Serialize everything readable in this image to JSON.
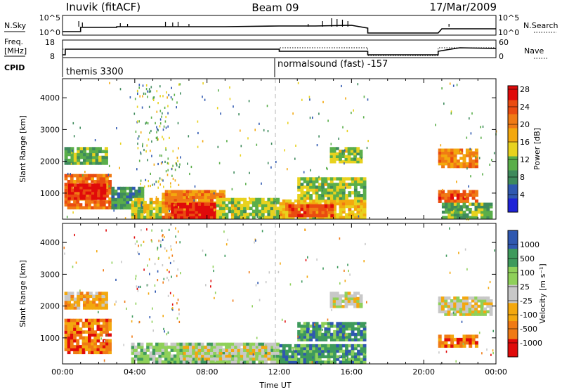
{
  "header": {
    "station": "Inuvik (fitACF)",
    "beam": "Beam 09",
    "date": "17/Mar/2009"
  },
  "summary": {
    "nsky": {
      "label": "N.Sky",
      "ticks": [
        "10^5",
        "10^0"
      ]
    },
    "nsearch": {
      "label": "N.Search",
      "ticks": [
        "10^5",
        "10^0"
      ]
    },
    "freq": {
      "label_top": "Freq.",
      "label_bottom": "[MHz]",
      "ticks": [
        "18",
        "8"
      ]
    },
    "nave": {
      "label": "Nave",
      "ticks": [
        "60",
        "0"
      ]
    },
    "cpid": {
      "label": "CPID",
      "modes": [
        "themis 3300",
        "normalsound (fast) -157"
      ]
    }
  },
  "colors": {
    "power": [
      "#1e22d6",
      "#2f58b0",
      "#3e8a5c",
      "#5aae4a",
      "#e8d21e",
      "#f3a80e",
      "#f07a14",
      "#ea4b10",
      "#e00a0a"
    ],
    "velocity": [
      "#e00a0a",
      "#f07a14",
      "#f3a80e",
      "#c8c8c8",
      "#8fd05a",
      "#3e9a5c",
      "#2f58b0"
    ]
  },
  "chart_data": [
    {
      "type": "heatmap",
      "panel": "power",
      "ylabel": "Slant Range [km]",
      "xlabel": "",
      "yticks": [
        1000,
        2000,
        3000,
        4000
      ],
      "ylim": [
        180,
        4600
      ],
      "xlim": [
        0,
        24
      ],
      "colorbar": {
        "label": "Power [dB]",
        "ticks": [
          "4",
          "8",
          "12",
          "16",
          "20",
          "24",
          "28"
        ],
        "range": [
          0,
          32
        ]
      },
      "regions": [
        {
          "t0": 0.1,
          "t1": 2.7,
          "r0": 500,
          "r1": 1600,
          "value": 24
        },
        {
          "t0": 0.3,
          "t1": 2.4,
          "r0": 800,
          "r1": 1300,
          "value": 30
        },
        {
          "t0": 0.1,
          "t1": 2.5,
          "r0": 1900,
          "r1": 2450,
          "value": 12
        },
        {
          "t0": 2.7,
          "t1": 4.5,
          "r0": 500,
          "r1": 1200,
          "value": 10
        },
        {
          "t0": 3.8,
          "t1": 7.0,
          "r0": 200,
          "r1": 850,
          "value": 16
        },
        {
          "t0": 5.5,
          "t1": 9.0,
          "r0": 200,
          "r1": 1100,
          "value": 22
        },
        {
          "t0": 6.0,
          "t1": 8.5,
          "r0": 200,
          "r1": 700,
          "value": 30
        },
        {
          "t0": 8.5,
          "t1": 12.0,
          "r0": 200,
          "r1": 850,
          "value": 14
        },
        {
          "t0": 12.0,
          "t1": 16.8,
          "r0": 200,
          "r1": 800,
          "value": 18
        },
        {
          "t0": 12.5,
          "t1": 15.0,
          "r0": 250,
          "r1": 650,
          "value": 26
        },
        {
          "t0": 13.0,
          "t1": 16.8,
          "r0": 800,
          "r1": 1500,
          "value": 14
        },
        {
          "t0": 14.8,
          "t1": 16.6,
          "r0": 1950,
          "r1": 2450,
          "value": 14
        },
        {
          "t0": 20.8,
          "t1": 23.0,
          "r0": 700,
          "r1": 1100,
          "value": 26
        },
        {
          "t0": 20.8,
          "t1": 23.0,
          "r0": 1800,
          "r1": 2400,
          "value": 22
        },
        {
          "t0": 21.0,
          "t1": 23.8,
          "r0": 200,
          "r1": 700,
          "value": 12
        }
      ],
      "noise": [
        {
          "t0": 0.0,
          "t1": 24.0,
          "r0": 200,
          "r1": 4500,
          "count": 220
        },
        {
          "t0": 4.0,
          "t1": 6.5,
          "r0": 1200,
          "r1": 4500,
          "count": 140
        }
      ]
    },
    {
      "type": "heatmap",
      "panel": "velocity",
      "ylabel": "Slant Range [km]",
      "xlabel": "Time UT",
      "yticks": [
        1000,
        2000,
        3000,
        4000
      ],
      "ylim": [
        180,
        4600
      ],
      "xlim": [
        0,
        24
      ],
      "xticks": [
        "00:00",
        "04:00",
        "08:00",
        "12:00",
        "16:00",
        "20:00",
        "00:00"
      ],
      "colorbar": {
        "label": "Velocity [m s⁻¹]",
        "ticks": [
          "-1000",
          "-500",
          "-100",
          "-25",
          "25",
          "100",
          "500",
          "1000"
        ]
      },
      "regions": [
        {
          "t0": 0.1,
          "t1": 2.7,
          "r0": 500,
          "r1": 1600,
          "value": 1
        },
        {
          "t0": 0.1,
          "t1": 2.5,
          "r0": 1900,
          "r1": 2450,
          "value": 2
        },
        {
          "t0": 3.8,
          "t1": 12.0,
          "r0": 200,
          "r1": 850,
          "value": 4
        },
        {
          "t0": 6.5,
          "t1": 11.5,
          "r0": 300,
          "r1": 750,
          "value": 3
        },
        {
          "t0": 12.0,
          "t1": 16.8,
          "r0": 200,
          "r1": 800,
          "value": 5
        },
        {
          "t0": 13.0,
          "t1": 16.8,
          "r0": 900,
          "r1": 1500,
          "value": 5
        },
        {
          "t0": 14.8,
          "t1": 16.6,
          "r0": 1950,
          "r1": 2450,
          "value": 3
        },
        {
          "t0": 20.8,
          "t1": 23.0,
          "r0": 700,
          "r1": 1100,
          "value": 1
        },
        {
          "t0": 20.8,
          "t1": 23.8,
          "r0": 1700,
          "r1": 2300,
          "value": 3
        }
      ],
      "noise": [
        {
          "t0": 0.0,
          "t1": 24.0,
          "r0": 200,
          "r1": 4500,
          "count": 160
        },
        {
          "t0": 4.0,
          "t1": 6.5,
          "r0": 1200,
          "r1": 4500,
          "count": 80
        }
      ]
    }
  ]
}
